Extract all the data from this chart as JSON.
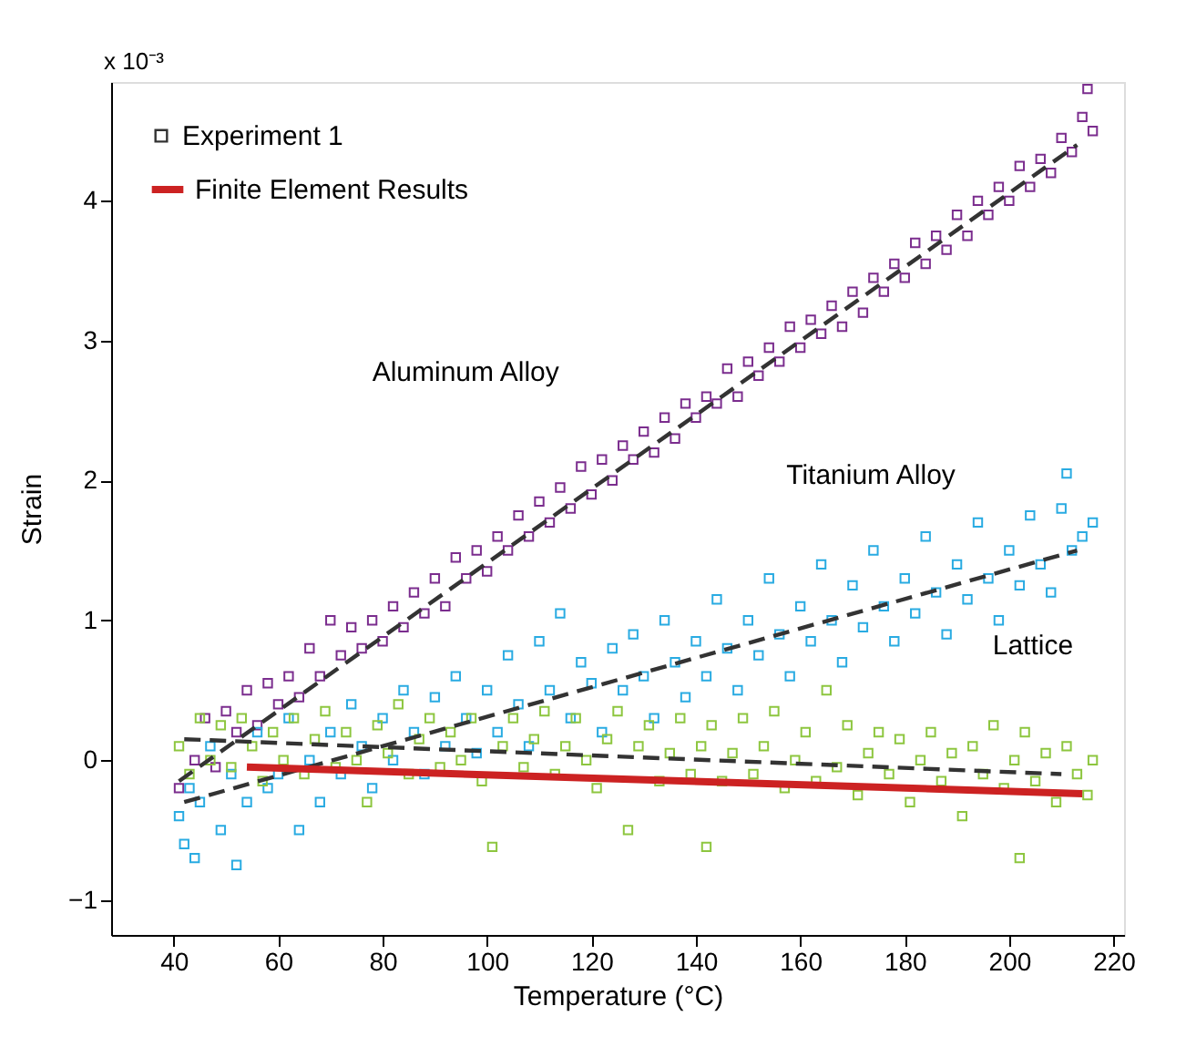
{
  "chart_data": {
    "type": "scatter",
    "xlabel": "Temperature (°C)",
    "ylabel": "Strain",
    "xlim": [
      28,
      222
    ],
    "xticks": [
      40,
      60,
      80,
      100,
      120,
      140,
      160,
      180,
      200,
      220
    ],
    "ylim": [
      -1.25,
      4.85
    ],
    "yticks": [
      -1,
      0,
      1,
      2,
      3,
      4
    ],
    "grid": false,
    "legend": "top left",
    "annotations": [
      "x 10⁻³",
      "Experiment 1",
      "Aluminum Alloy",
      "Titanium Alloy",
      "Lattice"
    ],
    "series": [
      {
        "marker": "square",
        "color": "#7b2d8e",
        "x": [
          41,
          44,
          46,
          48,
          50,
          52,
          54,
          56,
          58,
          60,
          62,
          64,
          66,
          68,
          70,
          72,
          74,
          76,
          78,
          80,
          82,
          84,
          86,
          88,
          90,
          92,
          94,
          96,
          98,
          100,
          102,
          104,
          106,
          108,
          110,
          112,
          114,
          116,
          118,
          120,
          122,
          124,
          126,
          128,
          130,
          132,
          134,
          136,
          138,
          140,
          142,
          144,
          146,
          148,
          150,
          152,
          154,
          156,
          158,
          160,
          162,
          164,
          166,
          168,
          170,
          172,
          174,
          176,
          178,
          180,
          182,
          184,
          186,
          188,
          190,
          192,
          194,
          196,
          198,
          200,
          202,
          204,
          206,
          208,
          210,
          212,
          214,
          216,
          215
        ],
        "values": [
          -0.2,
          0.0,
          0.3,
          -0.05,
          0.35,
          0.2,
          0.5,
          0.25,
          0.55,
          0.4,
          0.6,
          0.45,
          0.8,
          0.6,
          1.0,
          0.75,
          0.95,
          0.8,
          1.0,
          0.85,
          1.1,
          0.95,
          1.2,
          1.05,
          1.3,
          1.1,
          1.45,
          1.3,
          1.5,
          1.35,
          1.6,
          1.5,
          1.75,
          1.6,
          1.85,
          1.7,
          1.95,
          1.8,
          2.1,
          1.9,
          2.15,
          2.0,
          2.25,
          2.15,
          2.35,
          2.2,
          2.45,
          2.3,
          2.55,
          2.45,
          2.6,
          2.55,
          2.8,
          2.6,
          2.85,
          2.75,
          2.95,
          2.85,
          3.1,
          2.95,
          3.15,
          3.05,
          3.25,
          3.1,
          3.35,
          3.2,
          3.45,
          3.35,
          3.55,
          3.45,
          3.7,
          3.55,
          3.75,
          3.65,
          3.9,
          3.75,
          4.0,
          3.9,
          4.1,
          4.0,
          4.25,
          4.1,
          4.3,
          4.2,
          4.45,
          4.35,
          4.6,
          4.5,
          4.8
        ]
      },
      {
        "marker": "square",
        "color": "#29abe2",
        "x": [
          41,
          42,
          43,
          44,
          45,
          47,
          49,
          51,
          52,
          54,
          56,
          58,
          60,
          62,
          64,
          66,
          68,
          70,
          72,
          74,
          76,
          78,
          80,
          82,
          84,
          86,
          88,
          90,
          92,
          94,
          96,
          98,
          100,
          102,
          104,
          106,
          108,
          110,
          112,
          114,
          116,
          118,
          120,
          122,
          124,
          126,
          128,
          130,
          132,
          134,
          136,
          138,
          140,
          142,
          144,
          146,
          148,
          150,
          152,
          154,
          156,
          158,
          160,
          162,
          164,
          166,
          168,
          170,
          172,
          174,
          176,
          178,
          180,
          182,
          184,
          186,
          188,
          190,
          192,
          194,
          196,
          198,
          200,
          202,
          204,
          206,
          208,
          210,
          212,
          214,
          216,
          211
        ],
        "values": [
          -0.4,
          -0.6,
          -0.2,
          -0.7,
          -0.3,
          0.1,
          -0.5,
          -0.1,
          -0.75,
          -0.3,
          0.2,
          -0.2,
          -0.1,
          0.3,
          -0.5,
          0.0,
          -0.3,
          0.2,
          -0.1,
          0.4,
          0.1,
          -0.2,
          0.3,
          0.0,
          0.5,
          0.2,
          -0.1,
          0.45,
          0.1,
          0.6,
          0.3,
          0.05,
          0.5,
          0.2,
          0.75,
          0.4,
          0.1,
          0.85,
          0.5,
          1.05,
          0.3,
          0.7,
          0.55,
          0.2,
          0.8,
          0.5,
          0.9,
          0.6,
          0.3,
          1.0,
          0.7,
          0.45,
          0.85,
          0.6,
          1.15,
          0.8,
          0.5,
          1.0,
          0.75,
          1.3,
          0.9,
          0.6,
          1.1,
          0.85,
          1.4,
          1.0,
          0.7,
          1.25,
          0.95,
          1.5,
          1.1,
          0.85,
          1.3,
          1.05,
          1.6,
          1.2,
          0.9,
          1.4,
          1.15,
          1.7,
          1.3,
          1.0,
          1.5,
          1.25,
          1.75,
          1.4,
          1.2,
          1.8,
          1.5,
          1.6,
          1.7,
          2.05
        ]
      },
      {
        "marker": "square",
        "color": "#8dc63f",
        "x": [
          41,
          43,
          45,
          47,
          49,
          51,
          53,
          55,
          57,
          59,
          61,
          63,
          65,
          67,
          69,
          71,
          73,
          75,
          77,
          79,
          81,
          83,
          85,
          87,
          89,
          91,
          93,
          95,
          97,
          99,
          101,
          103,
          105,
          107,
          109,
          111,
          113,
          115,
          117,
          119,
          121,
          123,
          125,
          127,
          129,
          131,
          133,
          135,
          137,
          139,
          141,
          142,
          143,
          145,
          147,
          149,
          151,
          153,
          155,
          157,
          159,
          161,
          163,
          165,
          167,
          169,
          171,
          173,
          175,
          177,
          179,
          181,
          183,
          185,
          187,
          189,
          191,
          193,
          195,
          197,
          199,
          201,
          202,
          203,
          205,
          207,
          209,
          211,
          213,
          215,
          216
        ],
        "values": [
          0.1,
          -0.1,
          0.3,
          0.0,
          0.25,
          -0.05,
          0.3,
          0.1,
          -0.15,
          0.2,
          0.0,
          0.3,
          -0.1,
          0.15,
          0.35,
          -0.05,
          0.2,
          0.0,
          -0.3,
          0.25,
          0.05,
          0.4,
          -0.1,
          0.15,
          0.3,
          -0.05,
          0.2,
          0.0,
          0.3,
          -0.15,
          -0.62,
          0.1,
          0.3,
          -0.05,
          0.15,
          0.35,
          -0.1,
          0.1,
          0.3,
          0.0,
          -0.2,
          0.15,
          0.35,
          -0.5,
          0.1,
          0.25,
          -0.15,
          0.05,
          0.3,
          -0.1,
          0.1,
          -0.62,
          0.25,
          -0.15,
          0.05,
          0.3,
          -0.1,
          0.1,
          0.35,
          -0.2,
          0.0,
          0.2,
          -0.15,
          0.5,
          -0.05,
          0.25,
          -0.25,
          0.05,
          0.2,
          -0.1,
          0.15,
          -0.3,
          0.0,
          0.2,
          -0.15,
          0.05,
          -0.4,
          0.1,
          -0.1,
          0.25,
          -0.2,
          0.0,
          -0.7,
          0.2,
          -0.15,
          0.05,
          -0.3,
          0.1,
          -0.1,
          -0.25,
          0.0
        ]
      },
      {
        "type": "line",
        "line_style": "dashed",
        "color": "#333333",
        "x": [
          41,
          213
        ],
        "values": [
          -0.15,
          4.4
        ]
      },
      {
        "type": "line",
        "line_style": "dashed",
        "color": "#333333",
        "x": [
          42,
          213
        ],
        "values": [
          -0.3,
          1.5
        ]
      },
      {
        "type": "line",
        "line_style": "dashed",
        "color": "#333333",
        "x": [
          42,
          210
        ],
        "values": [
          0.15,
          -0.1
        ]
      },
      {
        "type": "line",
        "line_style": "solid",
        "name": "Finite Element Results",
        "color": "#cc2222",
        "x": [
          54,
          214
        ],
        "values": [
          -0.05,
          -0.24
        ]
      }
    ]
  }
}
